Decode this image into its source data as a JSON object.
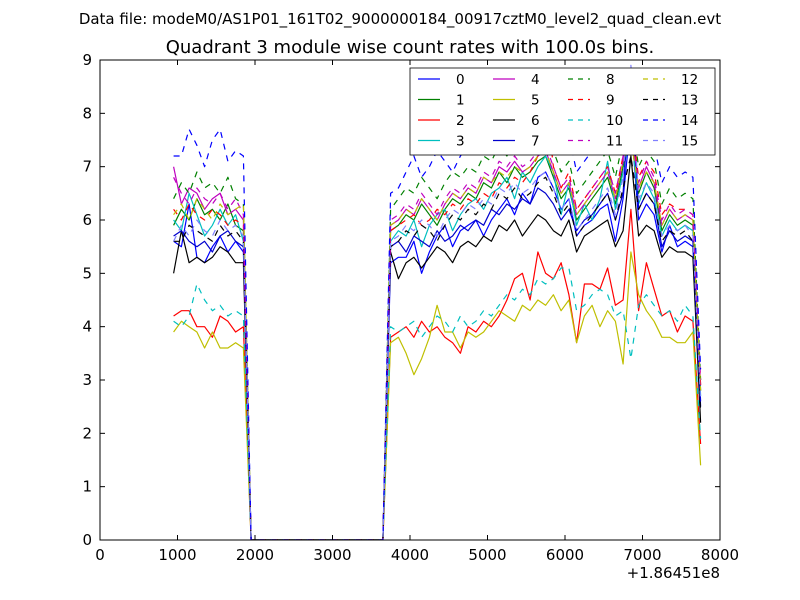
{
  "chart_data": {
    "type": "line",
    "suptitle": "Data file: modeM0/AS1P01_161T02_9000000184_00917cztM0_level2_quad_clean.evt",
    "title": "Quadrant 3 module wise count rates with 100.0s bins.",
    "xlabel": "",
    "ylabel": "",
    "x_offset_label": "+1.86451e8",
    "xlim": [
      0,
      8000
    ],
    "ylim": [
      0,
      9
    ],
    "xticks": [
      0,
      1000,
      2000,
      3000,
      4000,
      5000,
      6000,
      7000,
      8000
    ],
    "yticks": [
      0,
      1,
      2,
      3,
      4,
      5,
      6,
      7,
      8,
      9
    ],
    "grid": false,
    "legend_position": "top-right",
    "x": [
      950,
      1050,
      1150,
      1250,
      1350,
      1450,
      1550,
      1650,
      1750,
      1850,
      1950,
      2050,
      3650,
      3750,
      3850,
      3950,
      4050,
      4150,
      4250,
      4350,
      4450,
      4550,
      4650,
      4750,
      4850,
      4950,
      5050,
      5150,
      5250,
      5350,
      5450,
      5550,
      5650,
      5750,
      5850,
      5950,
      6050,
      6150,
      6250,
      6350,
      6450,
      6550,
      6650,
      6750,
      6850,
      6950,
      7050,
      7150,
      7250,
      7350,
      7450,
      7550,
      7650,
      7750
    ],
    "series": [
      {
        "name": "0",
        "color": "#0000ff",
        "dash": "solid",
        "values": [
          5.6,
          5.5,
          6.3,
          5.3,
          5.2,
          5.5,
          5.7,
          5.4,
          5.6,
          5.4,
          0,
          0,
          0,
          5.2,
          5.3,
          5.3,
          5.6,
          5.0,
          5.4,
          5.7,
          5.9,
          5.5,
          5.8,
          5.9,
          6.0,
          5.7,
          6.0,
          6.2,
          6.4,
          6.1,
          6.5,
          6.3,
          6.8,
          6.9,
          6.6,
          6.2,
          6.4,
          5.7,
          5.9,
          6.0,
          6.2,
          6.3,
          5.6,
          6.4,
          7.9,
          6.0,
          6.3,
          6.1,
          5.4,
          5.9,
          5.5,
          5.6,
          5.5,
          2.6
        ]
      },
      {
        "name": "1",
        "color": "#008000",
        "dash": "solid",
        "values": [
          5.9,
          6.2,
          6.0,
          6.4,
          6.1,
          6.2,
          6.0,
          6.3,
          5.9,
          5.8,
          0,
          0,
          0,
          5.8,
          5.9,
          6.1,
          6.0,
          6.3,
          6.1,
          5.9,
          6.2,
          6.4,
          6.3,
          6.5,
          6.4,
          6.7,
          6.6,
          6.9,
          6.7,
          7.0,
          6.8,
          6.9,
          7.1,
          7.2,
          6.8,
          6.4,
          6.6,
          6.0,
          6.2,
          6.4,
          6.6,
          6.8,
          6.3,
          7.0,
          7.6,
          6.5,
          6.9,
          6.6,
          5.8,
          6.1,
          5.9,
          6.0,
          5.9,
          2.8
        ]
      },
      {
        "name": "2",
        "color": "#ff0000",
        "dash": "solid",
        "values": [
          4.2,
          4.3,
          4.3,
          4.0,
          4.0,
          3.8,
          4.2,
          4.1,
          3.9,
          4.0,
          0,
          0,
          0,
          3.8,
          3.9,
          4.0,
          3.8,
          4.1,
          3.9,
          4.0,
          3.8,
          3.7,
          3.5,
          4.0,
          3.9,
          4.1,
          4.0,
          4.2,
          4.5,
          4.9,
          5.0,
          4.5,
          5.4,
          5.0,
          4.9,
          5.2,
          4.6,
          3.7,
          4.8,
          4.8,
          4.7,
          5.1,
          4.4,
          4.5,
          6.2,
          4.3,
          5.2,
          4.7,
          4.2,
          4.3,
          3.9,
          4.2,
          4.1,
          1.8
        ]
      },
      {
        "name": "3",
        "color": "#00bfbf",
        "dash": "solid",
        "values": [
          6.0,
          5.8,
          6.5,
          6.1,
          5.7,
          5.9,
          6.2,
          5.9,
          6.1,
          5.6,
          0,
          0,
          0,
          5.6,
          5.8,
          5.7,
          6.0,
          5.5,
          5.9,
          6.1,
          6.2,
          5.8,
          6.1,
          6.3,
          6.4,
          6.2,
          6.5,
          6.6,
          6.8,
          6.4,
          6.9,
          6.7,
          7.0,
          7.2,
          6.9,
          6.1,
          6.7,
          5.9,
          6.3,
          6.0,
          6.4,
          7.1,
          6.2,
          6.9,
          7.7,
          6.3,
          6.7,
          6.4,
          5.7,
          6.0,
          5.8,
          5.9,
          5.8,
          2.7
        ]
      },
      {
        "name": "4",
        "color": "#bf00bf",
        "dash": "solid",
        "values": [
          7.0,
          6.3,
          6.6,
          6.5,
          6.2,
          6.4,
          6.5,
          6.1,
          6.2,
          6.0,
          0,
          0,
          0,
          5.9,
          6.0,
          6.2,
          6.1,
          6.4,
          6.2,
          6.0,
          6.3,
          6.5,
          6.4,
          6.6,
          6.5,
          6.8,
          6.7,
          7.0,
          6.9,
          7.1,
          6.9,
          7.0,
          7.2,
          7.3,
          6.9,
          6.5,
          6.7,
          6.1,
          6.3,
          6.5,
          6.7,
          6.9,
          6.4,
          7.1,
          7.8,
          6.6,
          7.0,
          6.7,
          5.9,
          6.2,
          6.0,
          6.1,
          6.0,
          2.9
        ]
      },
      {
        "name": "5",
        "color": "#bfbf00",
        "dash": "solid",
        "values": [
          3.9,
          4.1,
          4.0,
          3.9,
          3.6,
          3.9,
          3.6,
          3.6,
          3.7,
          3.6,
          0,
          0,
          0,
          3.7,
          3.8,
          3.5,
          3.1,
          3.4,
          3.8,
          4.4,
          3.9,
          3.9,
          3.6,
          3.9,
          3.8,
          3.9,
          4.1,
          4.3,
          4.2,
          4.1,
          4.4,
          4.3,
          4.5,
          4.4,
          4.6,
          4.3,
          4.5,
          3.7,
          4.2,
          4.4,
          4.0,
          4.3,
          4.1,
          3.3,
          5.4,
          4.6,
          4.3,
          4.1,
          3.8,
          3.8,
          3.7,
          3.7,
          3.9,
          1.4
        ]
      },
      {
        "name": "6",
        "color": "#000000",
        "dash": "solid",
        "values": [
          5.0,
          5.8,
          5.2,
          5.3,
          5.2,
          5.3,
          5.5,
          5.4,
          5.2,
          5.2,
          0,
          0,
          0,
          5.4,
          4.9,
          5.2,
          5.3,
          5.1,
          5.3,
          5.5,
          5.4,
          5.2,
          5.5,
          5.6,
          5.5,
          5.7,
          5.6,
          5.9,
          5.8,
          6.0,
          5.7,
          5.9,
          6.1,
          6.0,
          5.8,
          5.7,
          6.0,
          5.4,
          5.7,
          5.8,
          5.9,
          6.0,
          5.5,
          5.8,
          7.2,
          5.7,
          5.9,
          5.8,
          5.3,
          5.5,
          5.4,
          5.4,
          5.3,
          2.2
        ]
      },
      {
        "name": "7",
        "color": "#0000cc",
        "dash": "solid",
        "values": [
          5.7,
          5.8,
          5.6,
          5.5,
          5.6,
          5.4,
          5.7,
          5.8,
          5.6,
          5.5,
          0,
          0,
          0,
          5.5,
          5.6,
          5.4,
          5.7,
          5.6,
          5.5,
          5.8,
          5.6,
          5.7,
          5.9,
          5.8,
          6.0,
          5.9,
          6.2,
          6.1,
          6.3,
          6.2,
          6.4,
          6.3,
          6.6,
          6.5,
          6.3,
          6.0,
          6.2,
          5.8,
          6.0,
          6.1,
          6.3,
          6.5,
          6.0,
          6.5,
          8.8,
          6.2,
          6.5,
          6.3,
          5.5,
          5.8,
          5.6,
          5.7,
          5.6,
          2.5
        ]
      },
      {
        "name": "8",
        "color": "#008000",
        "dash": "dashed",
        "values": [
          6.4,
          6.7,
          6.5,
          6.9,
          6.6,
          6.7,
          6.5,
          6.8,
          6.4,
          6.3,
          0,
          0,
          0,
          6.2,
          6.4,
          6.6,
          6.5,
          6.8,
          6.6,
          6.4,
          6.7,
          6.9,
          6.8,
          7.0,
          6.9,
          7.2,
          7.1,
          7.4,
          7.2,
          7.5,
          7.3,
          7.4,
          7.6,
          7.7,
          7.3,
          6.9,
          7.1,
          6.5,
          6.7,
          6.9,
          7.1,
          7.3,
          6.8,
          7.5,
          8.0,
          7.0,
          7.3,
          7.1,
          6.3,
          6.6,
          6.4,
          6.5,
          6.4,
          3.0
        ]
      },
      {
        "name": "9",
        "color": "#ff0000",
        "dash": "dashed",
        "values": [
          6.2,
          6.0,
          6.3,
          6.1,
          6.0,
          6.2,
          6.1,
          5.9,
          6.0,
          5.9,
          0,
          0,
          0,
          5.8,
          5.9,
          6.0,
          6.1,
          5.9,
          6.0,
          6.2,
          6.1,
          6.3,
          6.2,
          6.4,
          6.3,
          6.5,
          6.4,
          6.7,
          6.6,
          6.8,
          6.7,
          6.9,
          7.2,
          8.3,
          7.0,
          6.6,
          6.9,
          6.2,
          6.4,
          6.6,
          6.8,
          7.0,
          6.5,
          7.2,
          7.9,
          6.8,
          7.1,
          6.9,
          6.1,
          6.3,
          6.2,
          6.2,
          6.1,
          2.9
        ]
      },
      {
        "name": "10",
        "color": "#00bfbf",
        "dash": "dashed",
        "values": [
          4.1,
          4.0,
          4.2,
          4.8,
          4.5,
          4.3,
          4.4,
          4.2,
          4.3,
          4.2,
          0,
          0,
          0,
          4.0,
          3.9,
          4.0,
          4.1,
          3.8,
          4.0,
          4.2,
          4.1,
          3.9,
          4.2,
          4.0,
          4.1,
          4.3,
          4.2,
          4.4,
          4.6,
          4.5,
          4.7,
          4.6,
          4.9,
          4.8,
          4.9,
          5.1,
          5.1,
          4.3,
          4.4,
          4.6,
          4.7,
          4.6,
          4.2,
          4.3,
          3.4,
          4.4,
          4.6,
          4.4,
          4.2,
          4.3,
          4.1,
          4.4,
          4.2,
          1.9
        ]
      },
      {
        "name": "11",
        "color": "#bf00bf",
        "dash": "dashed",
        "values": [
          6.8,
          6.5,
          6.3,
          6.6,
          6.4,
          6.3,
          6.5,
          6.2,
          6.4,
          6.1,
          0,
          0,
          0,
          6.0,
          6.1,
          6.3,
          6.2,
          6.5,
          6.3,
          6.1,
          6.4,
          6.6,
          6.5,
          6.7,
          6.6,
          6.9,
          6.8,
          7.1,
          7.0,
          7.2,
          7.0,
          7.1,
          7.3,
          7.4,
          7.0,
          6.6,
          6.8,
          6.2,
          6.4,
          6.6,
          6.8,
          7.0,
          6.5,
          7.2,
          7.7,
          6.7,
          7.1,
          6.8,
          6.0,
          6.3,
          6.1,
          6.2,
          6.1,
          3.0
        ]
      },
      {
        "name": "12",
        "color": "#bfbf00",
        "dash": "dashed",
        "values": [
          6.1,
          6.3,
          6.0,
          6.4,
          6.2,
          6.0,
          6.3,
          6.1,
          6.2,
          6.3,
          0,
          0,
          0,
          5.9,
          6.0,
          6.2,
          6.1,
          6.4,
          6.2,
          6.0,
          6.3,
          6.5,
          6.4,
          6.6,
          6.5,
          6.8,
          6.7,
          6.9,
          6.8,
          7.0,
          6.9,
          7.0,
          7.2,
          7.3,
          6.9,
          6.5,
          6.7,
          6.1,
          6.3,
          6.5,
          6.7,
          6.9,
          6.4,
          7.1,
          7.5,
          6.6,
          6.9,
          6.7,
          5.9,
          6.2,
          6.0,
          6.1,
          6.0,
          2.8
        ]
      },
      {
        "name": "13",
        "color": "#000000",
        "dash": "dashed",
        "values": [
          5.6,
          5.6,
          5.9,
          5.8,
          5.7,
          5.6,
          5.9,
          5.7,
          5.8,
          5.6,
          0,
          0,
          0,
          5.5,
          5.6,
          5.8,
          5.7,
          5.9,
          5.8,
          5.6,
          5.9,
          6.1,
          6.0,
          6.2,
          6.1,
          6.3,
          6.2,
          6.5,
          6.4,
          6.6,
          6.4,
          6.5,
          6.7,
          6.8,
          6.5,
          6.1,
          6.3,
          5.7,
          5.9,
          6.1,
          6.3,
          6.5,
          6.0,
          6.6,
          7.2,
          6.2,
          6.5,
          6.3,
          5.6,
          5.8,
          5.7,
          5.8,
          5.6,
          2.4
        ]
      },
      {
        "name": "14",
        "color": "#0000ff",
        "dash": "dashed",
        "values": [
          7.2,
          7.2,
          7.7,
          7.4,
          7.0,
          7.5,
          7.7,
          7.1,
          7.3,
          7.2,
          0,
          0,
          0,
          6.5,
          6.6,
          6.9,
          7.2,
          6.8,
          7.0,
          7.3,
          7.1,
          6.9,
          7.2,
          7.4,
          7.3,
          7.5,
          7.4,
          7.7,
          7.6,
          7.8,
          7.7,
          7.9,
          8.0,
          8.3,
          7.8,
          7.4,
          7.6,
          6.9,
          7.1,
          7.3,
          7.5,
          7.7,
          7.2,
          7.9,
          8.3,
          7.3,
          7.6,
          7.4,
          6.7,
          7.0,
          6.8,
          6.9,
          6.8,
          3.2
        ]
      },
      {
        "name": "15",
        "color": "#7f7fff",
        "dash": "dashed",
        "values": [
          5.6,
          5.9,
          5.7,
          6.0,
          5.8,
          5.7,
          6.0,
          5.8,
          5.9,
          5.7,
          0,
          0,
          0,
          5.6,
          5.7,
          5.9,
          5.8,
          6.0,
          5.9,
          5.7,
          6.0,
          6.2,
          6.1,
          6.3,
          6.2,
          6.4,
          6.3,
          6.6,
          6.5,
          6.7,
          6.5,
          6.6,
          6.8,
          6.9,
          6.6,
          6.2,
          6.4,
          5.8,
          6.0,
          6.2,
          6.4,
          6.6,
          6.1,
          6.8,
          8.9,
          6.4,
          6.7,
          6.5,
          5.7,
          5.9,
          5.8,
          5.9,
          5.7,
          2.6
        ]
      }
    ]
  }
}
